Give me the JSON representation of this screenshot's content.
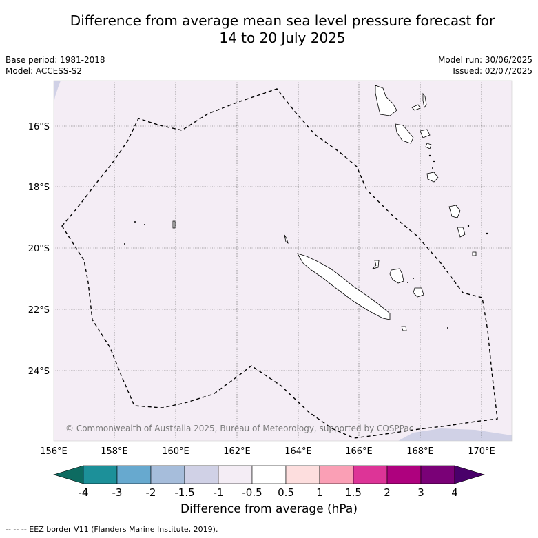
{
  "header": {
    "title_line1": "Difference from average mean sea level pressure forecast for",
    "title_line2": "14 to 20 July 2025",
    "base_period": "Base period: 1981-2018",
    "model": "Model: ACCESS-S2",
    "model_run": "Model run: 30/06/2025",
    "issued": "Issued: 02/07/2025"
  },
  "map": {
    "lon_ticks": [
      "156°E",
      "158°E",
      "160°E",
      "162°E",
      "164°E",
      "166°E",
      "168°E",
      "170°E"
    ],
    "lat_ticks": [
      "16°S",
      "18°S",
      "20°S",
      "22°S",
      "24°S"
    ],
    "copyright": "© Commonwealth of Australia 2025, Bureau of Meteorology, supported by COSPPac",
    "background_color": "#f4edf5",
    "low_anomaly_color": "#d0d1e6",
    "land_outline_color": "#000000"
  },
  "colorbar": {
    "title": "Difference from average (hPa)",
    "ticks": [
      "-4",
      "-3",
      "-2",
      "-1.5",
      "-1",
      "-0.5",
      "0.5",
      "1",
      "1.5",
      "2",
      "3",
      "4"
    ],
    "colors": [
      "#0d6b61",
      "#1c9099",
      "#67a9cf",
      "#a6bddb",
      "#d0d1e6",
      "#f4edf5",
      "#ffffff",
      "#fddede",
      "#fa9fb5",
      "#dd3497",
      "#ae017e",
      "#7a0177",
      "#49006a"
    ]
  },
  "footer": {
    "legend": "--  --  -- EEZ border V11 (Flanders Marine Institute, 2019)."
  }
}
